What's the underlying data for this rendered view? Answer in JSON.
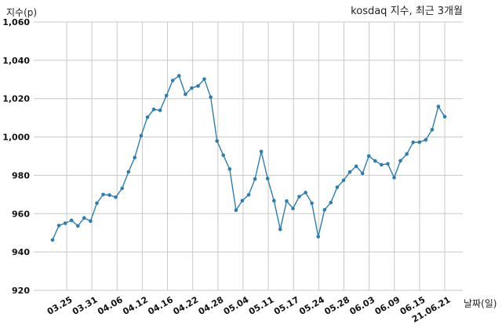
{
  "chart_data": {
    "type": "line",
    "title": "kosdaq 지수, 최근 3개월",
    "ylabel": "지수(p)",
    "xlabel": "날짜(일)",
    "ylim": [
      920,
      1060
    ],
    "yticks": [
      920,
      940,
      960,
      980,
      1000,
      1020,
      1040,
      1060
    ],
    "ytick_labels": [
      "920",
      "940",
      "960",
      "980",
      "1,000",
      "1,020",
      "1,040",
      "1,060"
    ],
    "xtick_labels": [
      "03.25",
      "03.31",
      "04.06",
      "04.12",
      "04.16",
      "04.22",
      "04.28",
      "05.04",
      "05.11",
      "05.17",
      "05.24",
      "05.28",
      "06.03",
      "06.09",
      "06.15",
      "21.06.21"
    ],
    "grid": true,
    "series": [
      {
        "values": [
          946.3,
          953.8,
          955.0,
          956.5,
          953.6,
          957.8,
          956.1,
          965.5,
          970.0,
          969.7,
          968.6,
          973.2,
          981.8,
          989.3,
          1000.7,
          1010.3,
          1014.4,
          1013.9,
          1021.6,
          1029.5,
          1031.9,
          1022.3,
          1025.5,
          1026.6,
          1030.2,
          1020.8,
          997.9,
          990.5,
          983.3,
          961.8,
          966.8,
          969.8,
          978.1,
          992.4,
          978.3,
          966.8,
          951.8,
          966.6,
          962.7,
          968.9,
          971.0,
          965.5,
          948.0,
          962.0,
          965.8,
          973.8,
          977.4,
          981.7,
          984.7,
          981.0,
          990.1,
          987.5,
          985.5,
          986.0,
          978.8,
          987.6,
          991.1,
          997.2,
          997.3,
          998.5,
          1003.8,
          1015.9,
          1010.6
        ]
      }
    ]
  }
}
